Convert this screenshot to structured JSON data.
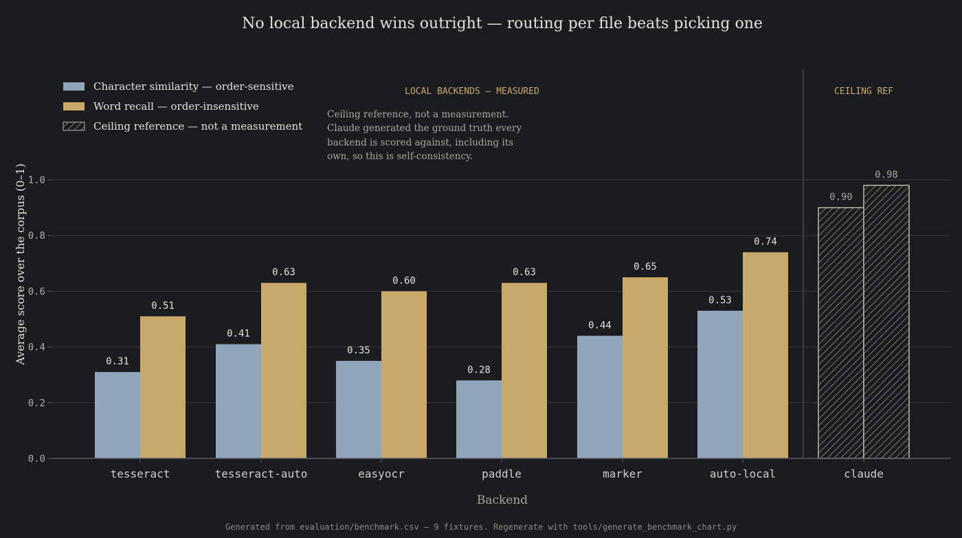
{
  "chart_data": {
    "type": "bar",
    "title": "No local backend wins outright — routing per file beats picking one",
    "xlabel": "Backend",
    "ylabel": "Average score over the corpus (0–1)",
    "ylim": [
      0,
      1.0
    ],
    "yticks": [
      "0.0",
      "0.2",
      "0.4",
      "0.6",
      "0.8",
      "1.0"
    ],
    "grid": true,
    "legend_position": "top-left",
    "categories": [
      "tesseract",
      "tesseract-auto",
      "easyocr",
      "paddle",
      "marker",
      "auto-local",
      "claude"
    ],
    "series": [
      {
        "name": "Character similarity — order-sensitive",
        "color": "#91a6bb",
        "values": [
          0.31,
          0.41,
          0.35,
          0.28,
          0.44,
          0.53,
          0.9
        ],
        "labels": [
          "0.31",
          "0.41",
          "0.35",
          "0.28",
          "0.44",
          "0.53",
          "0.90"
        ]
      },
      {
        "name": "Word recall — order-insensitive",
        "color": "#c9a96b",
        "values": [
          0.51,
          0.63,
          0.6,
          0.63,
          0.65,
          0.74,
          0.98
        ],
        "labels": [
          "0.51",
          "0.63",
          "0.60",
          "0.63",
          "0.65",
          "0.74",
          "0.98"
        ]
      }
    ],
    "reference_category": "claude",
    "legend_extra": "Ceiling reference — not a measurement",
    "sections": {
      "measured": "LOCAL BACKENDS — MEASURED",
      "reference": "CEILING REF"
    },
    "annotation": [
      "Ceiling reference, not a measurement.",
      "Claude generated the ground truth every",
      "backend is scored against, including its",
      "own, so this is self-consistency."
    ],
    "footer": "Generated from evaluation/benchmark.csv — 9 fixtures. Regenerate with tools/generate_benchmark_chart.py"
  },
  "colors": {
    "background": "#1b1c1f",
    "text": "#e6e2d8",
    "muted": "#9a9a96",
    "grid": "#3a3b3e",
    "accent": "#c9a96b",
    "hatch": "#bdb8ac"
  }
}
